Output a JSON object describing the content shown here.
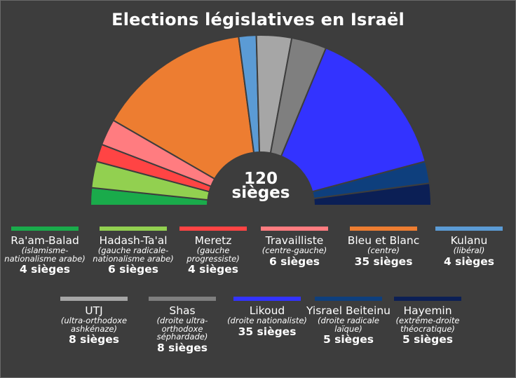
{
  "chart_data": {
    "type": "pie",
    "subtype": "hemicycle",
    "title": "Elections législatives en Israël",
    "center_number": "120",
    "center_label": "sièges",
    "total": 120,
    "parties": [
      {
        "name": "Ra'am-Balad",
        "desc": "(islamisme-nationalisme arabe)",
        "seats": 4,
        "seats_label": "4 sièges",
        "color": "#1aab4b"
      },
      {
        "name": "Hadash-Ta'al",
        "desc": "(gauche radicale-nationalisme arabe)",
        "seats": 6,
        "seats_label": "6 sièges",
        "color": "#92d050"
      },
      {
        "name": "Meretz",
        "desc": "(gauche progressiste)",
        "seats": 4,
        "seats_label": "4 sièges",
        "color": "#ff4444"
      },
      {
        "name": "Travailliste",
        "desc": "(centre-gauche)",
        "seats": 6,
        "seats_label": "6 sièges",
        "color": "#ff7c80"
      },
      {
        "name": "Bleu et Blanc",
        "desc": "(centre)",
        "seats": 35,
        "seats_label": "35 sièges",
        "color": "#ed7d31"
      },
      {
        "name": "Kulanu",
        "desc": "(libéral)",
        "seats": 4,
        "seats_label": "4 sièges",
        "color": "#5b9bd5"
      },
      {
        "name": "UTJ",
        "desc": "(ultra-orthodoxe ashkénaze)",
        "seats": 8,
        "seats_label": "8 sièges",
        "color": "#a6a6a6"
      },
      {
        "name": "Shas",
        "desc": "(droite ultra-orthodoxe séphardade)",
        "seats": 8,
        "seats_label": "8 sièges",
        "color": "#7f7f7f"
      },
      {
        "name": "Likoud",
        "desc": "(droite nationaliste)",
        "seats": 35,
        "seats_label": "35 sièges",
        "color": "#3333ff"
      },
      {
        "name": "Yisrael Beiteinu",
        "desc": "(droite radicale laïque)",
        "seats": 5,
        "seats_label": "5 sièges",
        "color": "#0e3f7d"
      },
      {
        "name": "Hayemin",
        "desc": "(extrême-droite théocratique)",
        "seats": 5,
        "seats_label": "5 sièges",
        "color": "#0b1f55"
      }
    ],
    "legend_placement": "bottom"
  },
  "colors": {
    "background": "#3d3d3d",
    "separator": "#3d3d3d",
    "text": "#ffffff"
  }
}
